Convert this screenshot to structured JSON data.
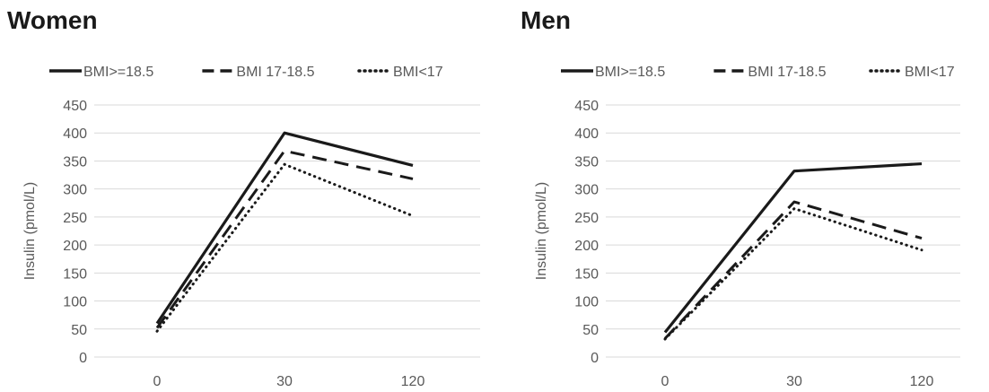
{
  "chart_data": [
    {
      "type": "line",
      "title": "Women",
      "xlabel": "",
      "ylabel": "Insulin (pmol/L)",
      "categories": [
        "0",
        "30",
        "120"
      ],
      "ylim": [
        0,
        450
      ],
      "yticks": [
        "0",
        "50",
        "100",
        "150",
        "200",
        "250",
        "300",
        "350",
        "400",
        "450"
      ],
      "grid": true,
      "legend_position": "top",
      "series": [
        {
          "name": "BMI>=18.5",
          "values": [
            60,
            400,
            342
          ],
          "style": "solid"
        },
        {
          "name": "BMI 17-18.5",
          "values": [
            52,
            368,
            318
          ],
          "style": "dashed"
        },
        {
          "name": "BMI<17",
          "values": [
            46,
            344,
            252
          ],
          "style": "dotted"
        }
      ]
    },
    {
      "type": "line",
      "title": "Men",
      "xlabel": "",
      "ylabel": "Insulin (pmol/L)",
      "categories": [
        "0",
        "30",
        "120"
      ],
      "ylim": [
        0,
        450
      ],
      "yticks": [
        "0",
        "50",
        "100",
        "150",
        "200",
        "250",
        "300",
        "350",
        "400",
        "450"
      ],
      "grid": true,
      "legend_position": "top",
      "series": [
        {
          "name": "BMI>=18.5",
          "values": [
            44,
            332,
            345
          ],
          "style": "solid"
        },
        {
          "name": "BMI 17-18.5",
          "values": [
            33,
            277,
            212
          ],
          "style": "dashed"
        },
        {
          "name": "BMI<17",
          "values": [
            32,
            265,
            191
          ],
          "style": "dotted"
        }
      ]
    }
  ],
  "colors": {
    "line": "#1a1a1a",
    "grid": "#d9d9d9",
    "text": "#595959",
    "title": "#1a1a1a"
  }
}
